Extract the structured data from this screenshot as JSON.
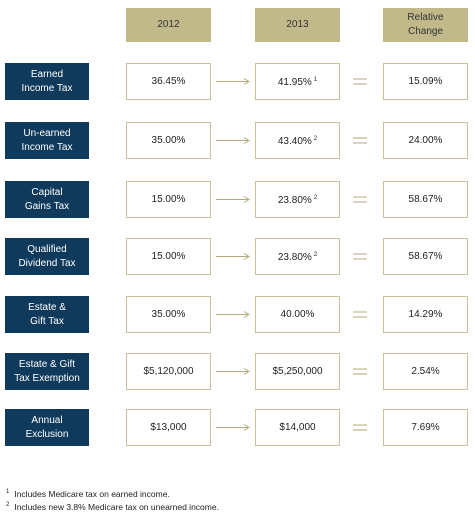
{
  "header": {
    "columns": [
      [
        "2012"
      ],
      [
        "2013"
      ],
      [
        "Relative",
        "Change"
      ]
    ]
  },
  "rows": [
    {
      "label": [
        "Earned",
        "Income Tax"
      ],
      "v2012": "36.45%",
      "v2013": "41.95%",
      "note": "1",
      "change": "15.09%"
    },
    {
      "label": [
        "Un-earned",
        "Income Tax"
      ],
      "v2012": "35.00%",
      "v2013": "43.40%",
      "note": "2",
      "change": "24.00%"
    },
    {
      "label": [
        "Capital",
        "Gains Tax"
      ],
      "v2012": "15.00%",
      "v2013": "23.80%",
      "note": "2",
      "change": "58.67%"
    },
    {
      "label": [
        "Qualified",
        "Dividend Tax"
      ],
      "v2012": "15.00%",
      "v2013": "23.80%",
      "note": "2",
      "change": "58.67%"
    },
    {
      "label": [
        "Estate &",
        "Gift Tax"
      ],
      "v2012": "35.00%",
      "v2013": "40.00%",
      "change": "14.29%"
    },
    {
      "label": [
        "Estate & Gift",
        "Tax Exemption"
      ],
      "v2012": "$5,120,000",
      "v2013": "$5,250,000",
      "change": "2.54%"
    },
    {
      "label": [
        "Annual",
        "Exclusion"
      ],
      "v2012": "$13,000",
      "v2013": "$14,000",
      "change": "7.69%"
    }
  ],
  "footnotes": [
    {
      "marker": "1",
      "text": "Includes Medicare tax on earned income."
    },
    {
      "marker": "2",
      "text": "Includes new 3.8% Medicare tax on unearned income."
    }
  ]
}
